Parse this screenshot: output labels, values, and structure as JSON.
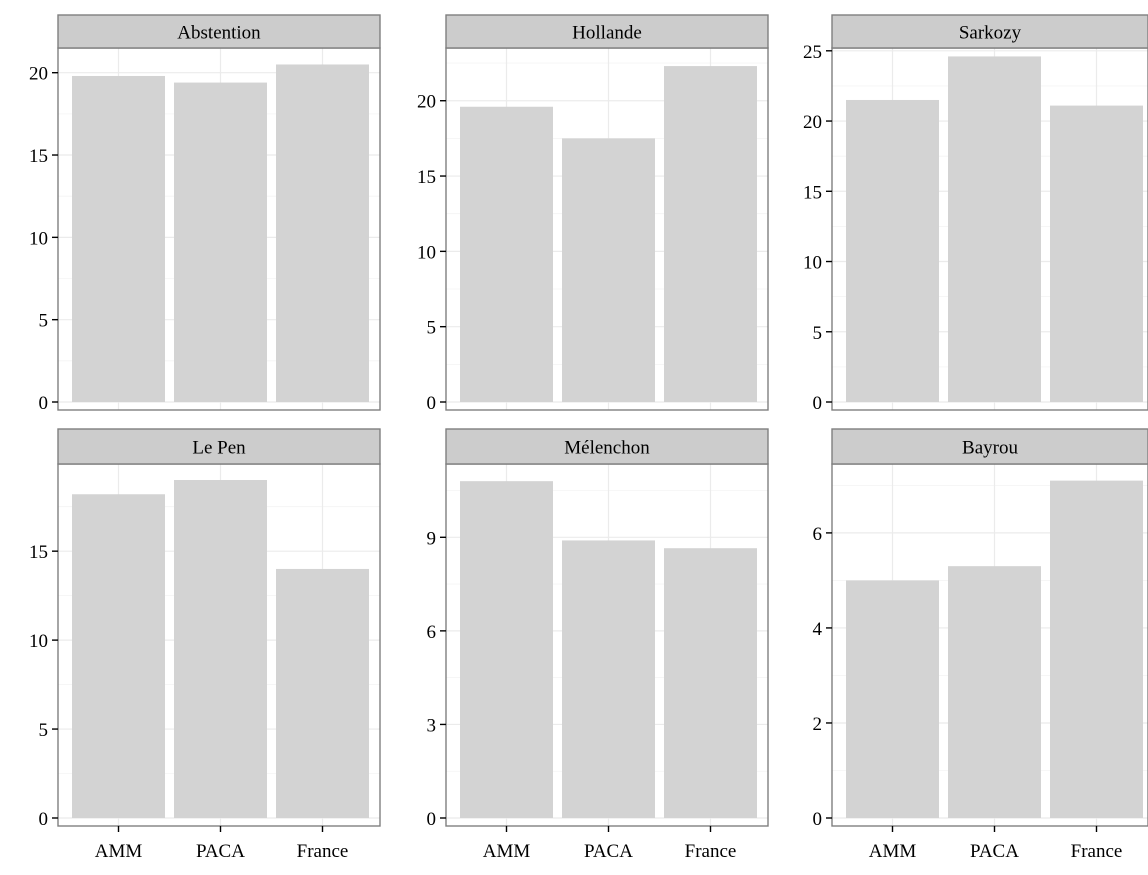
{
  "chart_data": {
    "type": "bar",
    "categories": [
      "AMM",
      "PACA",
      "France"
    ],
    "bar_color": "#d3d3d3",
    "strip_color": "#cccccc",
    "border_color": "#7f7f7f",
    "grid": true,
    "layout": "facet-grid-2x3",
    "y_scales": "free",
    "panels": [
      {
        "title": "Abstention",
        "values": [
          19.8,
          19.4,
          20.5
        ],
        "ylim": [
          0,
          21.5
        ],
        "yticks": [
          0,
          5,
          10,
          15,
          20
        ]
      },
      {
        "title": "Hollande",
        "values": [
          19.6,
          17.5,
          22.3
        ],
        "ylim": [
          0,
          23.5
        ],
        "yticks": [
          0,
          5,
          10,
          15,
          20
        ]
      },
      {
        "title": "Sarkozy",
        "values": [
          21.5,
          24.6,
          21.1
        ],
        "ylim": [
          0,
          25.2
        ],
        "yticks": [
          0,
          5,
          10,
          15,
          20,
          25
        ]
      },
      {
        "title": "Le Pen",
        "values": [
          18.2,
          19.0,
          14.0
        ],
        "ylim": [
          0,
          19.9
        ],
        "yticks": [
          0,
          5,
          10,
          15
        ]
      },
      {
        "title": "Mélenchon",
        "values": [
          10.8,
          8.9,
          8.65
        ],
        "ylim": [
          0,
          11.35
        ],
        "yticks": [
          0,
          3,
          6,
          9
        ]
      },
      {
        "title": "Bayrou",
        "values": [
          5.0,
          5.3,
          7.1
        ],
        "ylim": [
          0,
          7.45
        ],
        "yticks": [
          0,
          2,
          4,
          6
        ]
      }
    ]
  }
}
